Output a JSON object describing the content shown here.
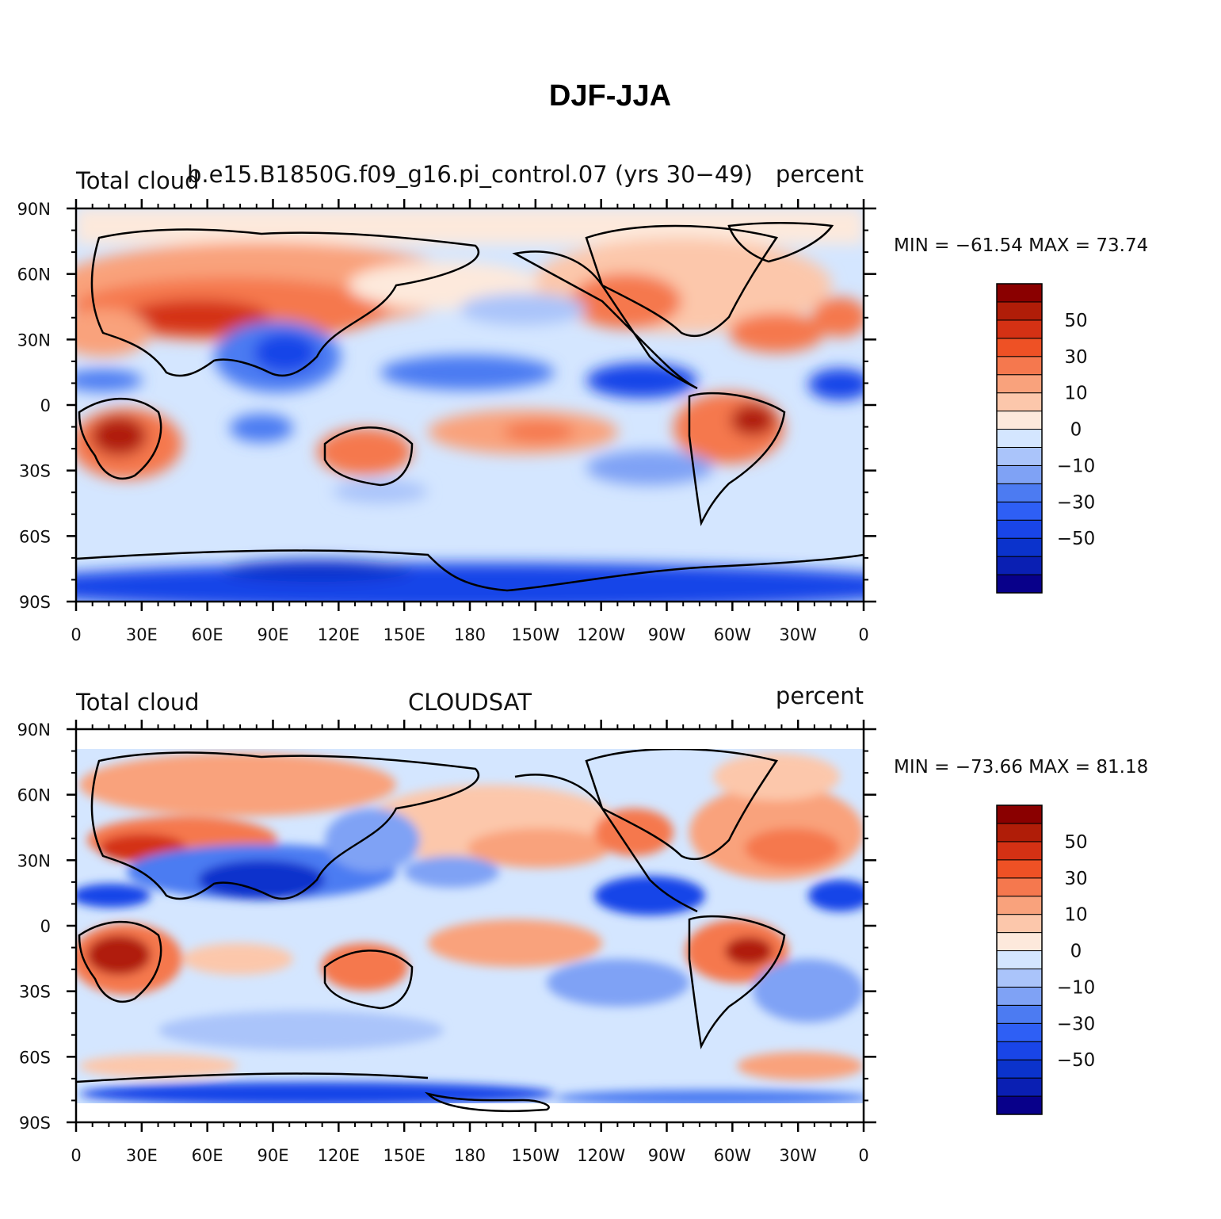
{
  "title": "DJF-JJA",
  "colorbar": {
    "colors": [
      "#08008a",
      "#0a1fb3",
      "#0b33cc",
      "#1945e8",
      "#2e5ff5",
      "#4c7bf2",
      "#7fa2f5",
      "#aac4fa",
      "#d4e6ff",
      "#fde9dc",
      "#fcc7ab",
      "#f9a27c",
      "#f5784e",
      "#ee5125",
      "#d43114",
      "#b01d08",
      "#8a0000"
    ],
    "labels": [
      "50",
      "30",
      "10",
      "0",
      "−10",
      "−30",
      "−50"
    ]
  },
  "x_ticks": [
    "0",
    "30E",
    "60E",
    "90E",
    "120E",
    "150E",
    "180",
    "150W",
    "120W",
    "90W",
    "60W",
    "30W",
    "0"
  ],
  "y_ticks": [
    "90N",
    "60N",
    "30N",
    "0",
    "30S",
    "60S",
    "90S"
  ],
  "panels": [
    {
      "left_label": "Total cloud",
      "center_label": "b.e15.B1850G.f09_g16.pi_control.07 (yrs 30−49)",
      "right_label": "percent",
      "stats": "MIN = −61.54  MAX =   73.74"
    },
    {
      "left_label": "Total cloud",
      "center_label": "CLOUDSAT",
      "right_label": "percent",
      "stats": "MIN = −73.66  MAX =   81.18"
    }
  ]
}
